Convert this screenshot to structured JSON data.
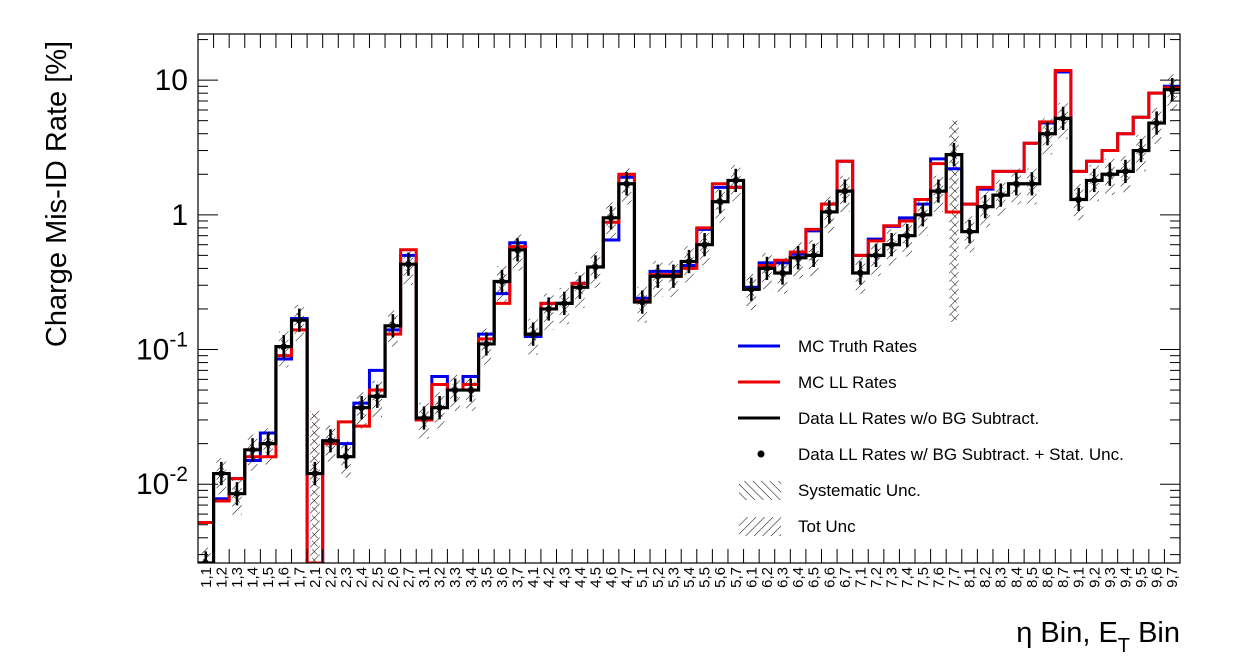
{
  "chart_data": {
    "type": "step-line",
    "title": "",
    "xlabel": "η Bin, E_T Bin",
    "xlabel_parts": {
      "eta": "η",
      "bin1": " Bin, E",
      "sub": "T",
      "bin2": " Bin"
    },
    "ylabel": "Charge Mis-ID Rate [%]",
    "yscale": "log",
    "ylim": [
      0.0026,
      22
    ],
    "ytick_labels": [
      {
        "value": 10,
        "base": "10",
        "exp": ""
      },
      {
        "value": 1,
        "base": "1",
        "exp": ""
      },
      {
        "value": 0.1,
        "base": "10",
        "exp": "-1"
      },
      {
        "value": 0.01,
        "base": "10",
        "exp": "-2"
      }
    ],
    "categories": [
      "1,1",
      "1,2",
      "1,3",
      "1,4",
      "1,5",
      "1,6",
      "1,7",
      "2,1",
      "2,2",
      "2,3",
      "2,4",
      "2,5",
      "2,6",
      "2,7",
      "3,1",
      "3,2",
      "3,3",
      "3,4",
      "3,5",
      "3,6",
      "3,7",
      "4,1",
      "4,2",
      "4,3",
      "4,4",
      "4,5",
      "4,6",
      "4,7",
      "5,1",
      "5,2",
      "5,3",
      "5,4",
      "5,5",
      "5,6",
      "5,7",
      "6,1",
      "6,2",
      "6,3",
      "6,4",
      "6,5",
      "6,6",
      "6,7",
      "7,1",
      "7,2",
      "7,3",
      "7,4",
      "7,5",
      "7,6",
      "7,7",
      "8,1",
      "8,2",
      "8,3",
      "8,4",
      "8,5",
      "8,6",
      "8,7",
      "9,1",
      "9,2",
      "9,3",
      "9,4",
      "9,5",
      "9,6",
      "9,7"
    ],
    "series": [
      {
        "name": "MC Truth Rates",
        "color": "#0000ee",
        "style": "step",
        "values": [
          0.0052,
          0.0078,
          0.011,
          0.015,
          0.024,
          0.085,
          0.17,
          0.0001,
          0.021,
          0.02,
          0.04,
          0.07,
          0.14,
          0.5,
          0.03,
          0.063,
          0.05,
          0.063,
          0.13,
          0.26,
          0.62,
          0.125,
          0.22,
          0.22,
          0.31,
          0.41,
          0.65,
          1.9,
          0.24,
          0.38,
          0.38,
          0.42,
          0.78,
          1.6,
          1.6,
          0.29,
          0.44,
          0.44,
          0.51,
          0.76,
          1.2,
          2.5,
          0.5,
          0.66,
          0.82,
          0.95,
          1.2,
          2.6,
          2.2,
          1.2,
          1.55,
          2.1,
          2.1,
          3.4,
          4.8,
          11.5,
          2.1,
          2.5,
          3.0,
          4.0,
          5.3,
          8.0,
          9.0
        ]
      },
      {
        "name": "MC LL Rates",
        "color": "#ee0000",
        "style": "step",
        "values": [
          0.0052,
          0.0075,
          0.011,
          0.016,
          0.016,
          0.09,
          0.14,
          0.0001,
          0.02,
          0.029,
          0.027,
          0.05,
          0.13,
          0.55,
          0.03,
          0.055,
          0.05,
          0.055,
          0.12,
          0.22,
          0.58,
          0.13,
          0.22,
          0.22,
          0.31,
          0.41,
          0.88,
          2.0,
          0.23,
          0.36,
          0.36,
          0.4,
          0.8,
          1.7,
          1.6,
          0.28,
          0.42,
          0.46,
          0.53,
          0.78,
          1.2,
          2.5,
          0.5,
          0.64,
          0.83,
          0.9,
          1.3,
          2.4,
          1.05,
          1.2,
          1.6,
          2.1,
          2.1,
          3.4,
          4.9,
          11.8,
          2.1,
          2.5,
          3.0,
          4.0,
          5.3,
          8.0,
          8.8
        ]
      },
      {
        "name": "Data LL Rates w/o BG Subtract.",
        "color": "#000000",
        "style": "step",
        "values": [
          0.0026,
          0.012,
          0.0085,
          0.018,
          0.02,
          0.105,
          0.165,
          0.012,
          0.021,
          0.016,
          0.037,
          0.045,
          0.15,
          0.43,
          0.031,
          0.037,
          0.05,
          0.05,
          0.11,
          0.32,
          0.55,
          0.13,
          0.2,
          0.22,
          0.29,
          0.41,
          0.95,
          1.7,
          0.225,
          0.35,
          0.35,
          0.45,
          0.6,
          1.25,
          1.8,
          0.28,
          0.4,
          0.37,
          0.48,
          0.5,
          1.05,
          1.5,
          0.37,
          0.5,
          0.6,
          0.7,
          1.0,
          1.5,
          2.8,
          0.75,
          1.15,
          1.4,
          1.7,
          1.7,
          4.0,
          5.2,
          1.3,
          1.8,
          2.0,
          2.1,
          3.0,
          4.8,
          8.5
        ]
      },
      {
        "name": "Data LL Rates w/ BG Subtract. + Stat. Unc.",
        "color": "#000000",
        "style": "points",
        "values": [
          0.0026,
          0.012,
          0.0085,
          0.018,
          0.02,
          0.105,
          0.165,
          0.012,
          0.021,
          0.016,
          0.037,
          0.045,
          0.15,
          0.43,
          0.031,
          0.037,
          0.05,
          0.05,
          0.11,
          0.32,
          0.55,
          0.13,
          0.2,
          0.22,
          0.29,
          0.41,
          0.95,
          1.7,
          0.225,
          0.35,
          0.35,
          0.45,
          0.6,
          1.25,
          1.8,
          0.28,
          0.4,
          0.37,
          0.48,
          0.5,
          1.05,
          1.5,
          0.37,
          0.5,
          0.6,
          0.7,
          1.0,
          1.5,
          2.8,
          0.75,
          1.15,
          1.4,
          1.7,
          1.7,
          4.0,
          5.2,
          1.3,
          1.8,
          2.0,
          2.1,
          3.0,
          4.8,
          8.5
        ]
      }
    ],
    "legend": {
      "placement": "bottom-right",
      "entries": [
        {
          "label": "MC Truth Rates",
          "kind": "line",
          "color": "#0000ee"
        },
        {
          "label": "MC LL Rates",
          "kind": "line",
          "color": "#ee0000"
        },
        {
          "label": "Data LL Rates w/o BG Subtract.",
          "kind": "line",
          "color": "#000000"
        },
        {
          "label": "Data LL Rates w/ BG Subtract. + Stat. Unc.",
          "kind": "marker",
          "color": "#000000"
        },
        {
          "label": "Systematic Unc.",
          "kind": "hatch-forward",
          "color": "#000000"
        },
        {
          "label": "Tot Unc",
          "kind": "hatch-back",
          "color": "#000000"
        }
      ]
    },
    "uncertainty": {
      "systematic_fraction": 0.15,
      "total_fraction": 0.3
    },
    "special_bands": [
      {
        "category": "2,1",
        "low": 0.0026,
        "high": 0.035
      },
      {
        "category": "7,7",
        "low": 0.16,
        "high": 5.0
      }
    ]
  }
}
